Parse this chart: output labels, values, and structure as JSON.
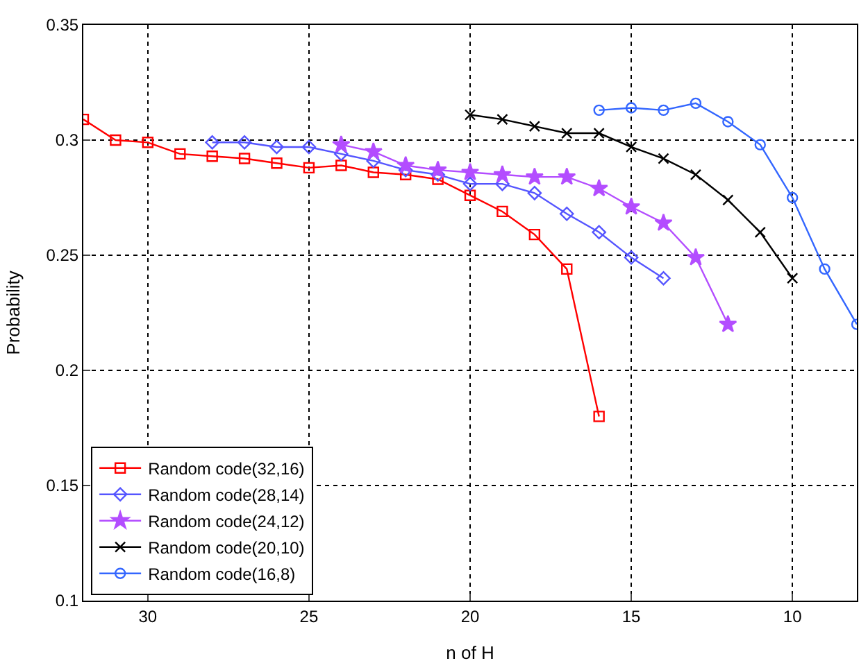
{
  "chart_data": {
    "type": "line",
    "xlabel": "n of H",
    "ylabel": "Probability",
    "xlim": [
      32,
      8
    ],
    "ylim": [
      0.1,
      0.35
    ],
    "xticks": [
      30,
      25,
      20,
      15,
      10
    ],
    "yticks": [
      0.1,
      0.15,
      0.2,
      0.25,
      0.3,
      0.35
    ],
    "grid": true,
    "legend": "bottom left",
    "line_style": "solid",
    "series": [
      {
        "name": "Random code(32,16)",
        "color": "#ff0000",
        "marker": "square",
        "x": [
          32,
          31,
          30,
          29,
          28,
          27,
          26,
          25,
          24,
          23,
          22,
          21,
          20,
          19,
          18,
          17,
          16
        ],
        "values": [
          0.309,
          0.3,
          0.299,
          0.294,
          0.293,
          0.292,
          0.29,
          0.288,
          0.289,
          0.286,
          0.285,
          0.283,
          0.276,
          0.269,
          0.259,
          0.244,
          0.18
        ]
      },
      {
        "name": "Random code(28,14)",
        "color": "#5555ff",
        "marker": "diamond",
        "x": [
          28,
          27,
          26,
          25,
          24,
          23,
          22,
          21,
          20,
          19,
          18,
          17,
          16,
          15,
          14
        ],
        "values": [
          0.299,
          0.299,
          0.297,
          0.297,
          0.294,
          0.291,
          0.287,
          0.285,
          0.281,
          0.281,
          0.277,
          0.268,
          0.26,
          0.249,
          0.24
        ]
      },
      {
        "name": "Random code(24,12)",
        "color": "#b34dff",
        "marker": "star",
        "x": [
          24,
          23,
          22,
          21,
          20,
          19,
          18,
          17,
          16,
          15,
          14,
          13,
          12
        ],
        "values": [
          0.298,
          0.295,
          0.289,
          0.287,
          0.286,
          0.285,
          0.284,
          0.284,
          0.279,
          0.271,
          0.264,
          0.249,
          0.22
        ]
      },
      {
        "name": "Random code(20,10)",
        "color": "#000000",
        "marker": "cross",
        "x": [
          20,
          19,
          18,
          17,
          16,
          15,
          14,
          13,
          12,
          11,
          10
        ],
        "values": [
          0.311,
          0.309,
          0.306,
          0.303,
          0.303,
          0.297,
          0.292,
          0.285,
          0.274,
          0.26,
          0.24
        ]
      },
      {
        "name": "Random code(16,8)",
        "color": "#3366ff",
        "marker": "circle",
        "x": [
          16,
          15,
          14,
          13,
          12,
          11,
          10,
          9,
          8
        ],
        "values": [
          0.313,
          0.314,
          0.313,
          0.316,
          0.308,
          0.298,
          0.275,
          0.244,
          0.22
        ]
      }
    ]
  }
}
